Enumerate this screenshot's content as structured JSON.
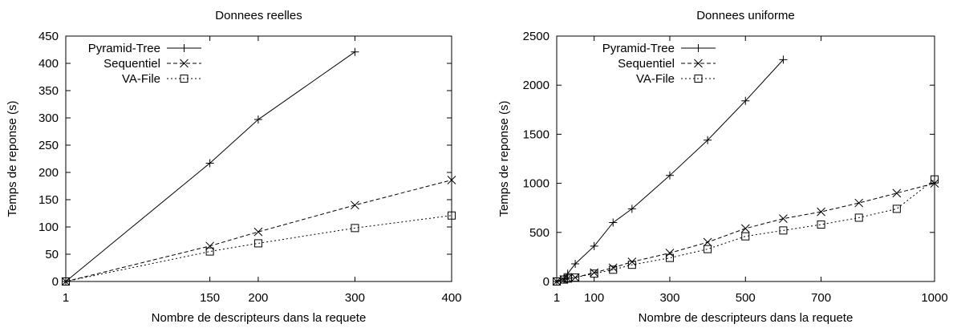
{
  "chart_data": [
    {
      "type": "line",
      "title": "Donnees reelles",
      "xlabel": "Nombre de descripteurs dans la requete",
      "ylabel": "Temps de reponse (s)",
      "xlim": [
        1,
        400
      ],
      "ylim": [
        0,
        450
      ],
      "x_ticks": [
        1,
        150,
        200,
        300,
        400
      ],
      "y_ticks": [
        0,
        50,
        100,
        150,
        200,
        250,
        300,
        350,
        400,
        450
      ],
      "grid": false,
      "legend_position": "top-left",
      "series": [
        {
          "name": "Pyramid-Tree",
          "marker": "plus",
          "dash": "solid",
          "x": [
            1,
            150,
            200,
            300
          ],
          "y": [
            0,
            217,
            297,
            421
          ]
        },
        {
          "name": "Sequentiel",
          "marker": "cross",
          "dash": "dashed",
          "x": [
            1,
            150,
            200,
            300,
            400
          ],
          "y": [
            0,
            65,
            91,
            140,
            186
          ]
        },
        {
          "name": "VA-File",
          "marker": "square",
          "dash": "dotted",
          "x": [
            1,
            150,
            200,
            300,
            400
          ],
          "y": [
            0,
            55,
            70,
            98,
            121
          ]
        }
      ]
    },
    {
      "type": "line",
      "title": "Donnees uniforme",
      "xlabel": "Nombre de descripteurs dans la requete",
      "ylabel": "Temps de reponse (s)",
      "xlim": [
        1,
        1000
      ],
      "ylim": [
        0,
        2500
      ],
      "x_ticks": [
        1,
        100,
        300,
        500,
        700,
        1000
      ],
      "y_ticks": [
        0,
        500,
        1000,
        1500,
        2000,
        2500
      ],
      "grid": false,
      "legend_position": "top-left",
      "series": [
        {
          "name": "Pyramid-Tree",
          "marker": "plus",
          "dash": "solid",
          "x": [
            1,
            20,
            30,
            50,
            100,
            150,
            200,
            300,
            400,
            500,
            600
          ],
          "y": [
            0,
            30,
            80,
            180,
            360,
            600,
            740,
            1080,
            1440,
            1840,
            2260
          ]
        },
        {
          "name": "Sequentiel",
          "marker": "cross",
          "dash": "dashed",
          "x": [
            1,
            20,
            30,
            50,
            100,
            150,
            200,
            300,
            400,
            500,
            600,
            700,
            800,
            900,
            1000
          ],
          "y": [
            0,
            20,
            30,
            40,
            90,
            140,
            200,
            290,
            400,
            540,
            640,
            710,
            800,
            900,
            1000
          ]
        },
        {
          "name": "VA-File",
          "marker": "square",
          "dash": "dotted",
          "x": [
            1,
            20,
            30,
            50,
            100,
            150,
            200,
            300,
            400,
            500,
            600,
            700,
            800,
            900,
            1000
          ],
          "y": [
            0,
            20,
            30,
            40,
            80,
            120,
            170,
            240,
            330,
            460,
            520,
            580,
            650,
            740,
            1040
          ]
        }
      ]
    }
  ]
}
